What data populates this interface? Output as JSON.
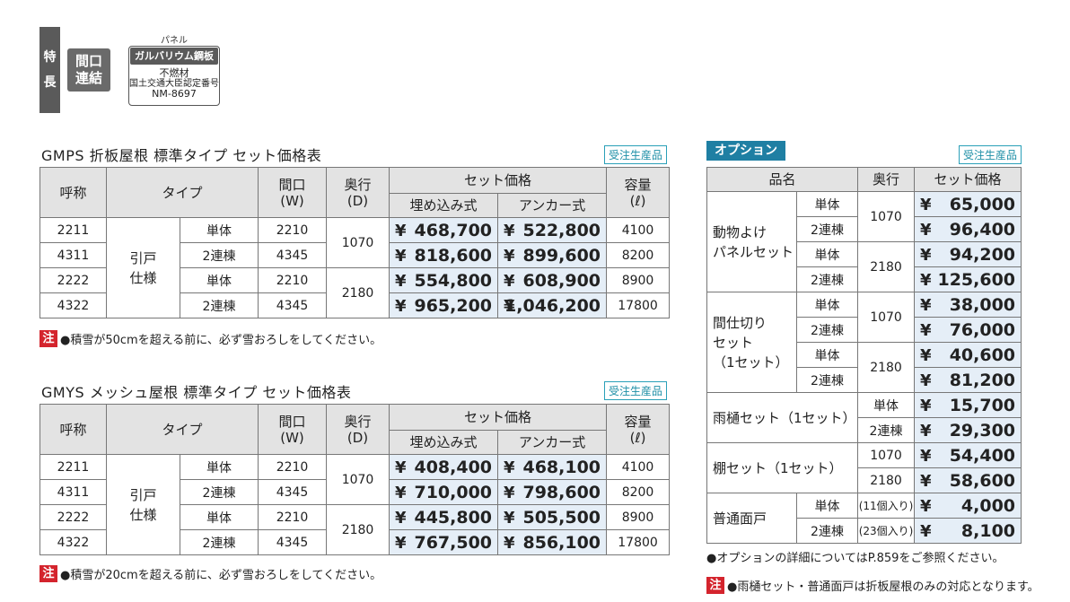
{
  "features": {
    "tag_chars": [
      "特",
      "長"
    ],
    "maguchi": [
      "間口",
      "連結"
    ],
    "panel_caption": "パネル",
    "panel_header": "ガルバリウム鋼板",
    "panel_lines": [
      "不燃材",
      "国土交通大臣認定番号",
      "NM-8697"
    ]
  },
  "gmps": {
    "title": "GMPS 折板屋根 標準タイプ セット価格表",
    "badge": "受注生産品",
    "headers": {
      "name": "呼称",
      "type": "タイプ",
      "width": "間口",
      "width_unit": "(W)",
      "depth": "奥行",
      "depth_unit": "(D)",
      "set_price": "セット価格",
      "embed": "埋め込み式",
      "anchor": "アンカー式",
      "capacity": "容量",
      "capacity_unit": "(ℓ)"
    },
    "type_group": [
      "引戸",
      "仕様"
    ],
    "rows": [
      {
        "name": "2211",
        "type": "単体",
        "w": "2210",
        "d": "1070",
        "embed": "468,700",
        "anchor": "522,800",
        "cap": "4100"
      },
      {
        "name": "4311",
        "type": "2連棟",
        "w": "4345",
        "embed": "818,600",
        "anchor": "899,600",
        "cap": "8200"
      },
      {
        "name": "2222",
        "type": "単体",
        "w": "2210",
        "d": "2180",
        "embed": "554,800",
        "anchor": "608,900",
        "cap": "8900"
      },
      {
        "name": "4322",
        "type": "2連棟",
        "w": "4345",
        "embed": "965,200",
        "anchor": "1,046,200",
        "cap": "17800"
      }
    ],
    "note_label": "注",
    "note": "●積雪が50cmを超える前に、必ず雪おろしをしてください。"
  },
  "gmys": {
    "title": "GMYS メッシュ屋根 標準タイプ セット価格表",
    "badge": "受注生産品",
    "headers": {
      "name": "呼称",
      "type": "タイプ",
      "width": "間口",
      "width_unit": "(W)",
      "depth": "奥行",
      "depth_unit": "(D)",
      "set_price": "セット価格",
      "embed": "埋め込み式",
      "anchor": "アンカー式",
      "capacity": "容量",
      "capacity_unit": "(ℓ)"
    },
    "type_group": [
      "引戸",
      "仕様"
    ],
    "rows": [
      {
        "name": "2211",
        "type": "単体",
        "w": "2210",
        "d": "1070",
        "embed": "408,400",
        "anchor": "468,100",
        "cap": "4100"
      },
      {
        "name": "4311",
        "type": "2連棟",
        "w": "4345",
        "embed": "710,000",
        "anchor": "798,600",
        "cap": "8200"
      },
      {
        "name": "2222",
        "type": "単体",
        "w": "2210",
        "d": "2180",
        "embed": "445,800",
        "anchor": "505,500",
        "cap": "8900"
      },
      {
        "name": "4322",
        "type": "2連棟",
        "w": "4345",
        "embed": "767,500",
        "anchor": "856,100",
        "cap": "17800"
      }
    ],
    "note_label": "注",
    "note": "●積雪が20cmを超える前に、必ず雪おろしをしてください。"
  },
  "options": {
    "title": "オプション",
    "badge": "受注生産品",
    "headers": {
      "name": "品名",
      "depth": "奥行",
      "price": "セット価格"
    },
    "yen": "¥",
    "animal": {
      "name": [
        "動物よけ",
        "パネルセット"
      ],
      "d1": "1070",
      "d2": "2180",
      "rows": [
        {
          "type": "単体",
          "price": "65,000"
        },
        {
          "type": "2連棟",
          "price": "96,400"
        },
        {
          "type": "単体",
          "price": "94,200"
        },
        {
          "type": "2連棟",
          "price": "125,600"
        }
      ]
    },
    "partition": {
      "name": [
        "間仕切り",
        "セット",
        "（1セット）"
      ],
      "d1": "1070",
      "d2": "2180",
      "rows": [
        {
          "type": "単体",
          "price": "38,000"
        },
        {
          "type": "2連棟",
          "price": "76,000"
        },
        {
          "type": "単体",
          "price": "40,600"
        },
        {
          "type": "2連棟",
          "price": "81,200"
        }
      ]
    },
    "gutter": {
      "name": "雨樋セット（1セット）",
      "rows": [
        {
          "type": "単体",
          "price": "15,700"
        },
        {
          "type": "2連棟",
          "price": "29,300"
        }
      ]
    },
    "shelf": {
      "name": "棚セット（1セット）",
      "rows": [
        {
          "d": "1070",
          "price": "54,400"
        },
        {
          "d": "2180",
          "price": "58,600"
        }
      ]
    },
    "door": {
      "name": "普通面戸",
      "rows": [
        {
          "type": "単体",
          "qty": "(11個入り)",
          "price": "4,000"
        },
        {
          "type": "2連棟",
          "qty": "(23個入り)",
          "price": "8,100"
        }
      ]
    },
    "note1": "●オプションの詳細についてはP.859をご参照ください。",
    "note_label": "注",
    "note2": "●雨樋セット・普通面戸は折板屋根のみの対応となります。"
  }
}
